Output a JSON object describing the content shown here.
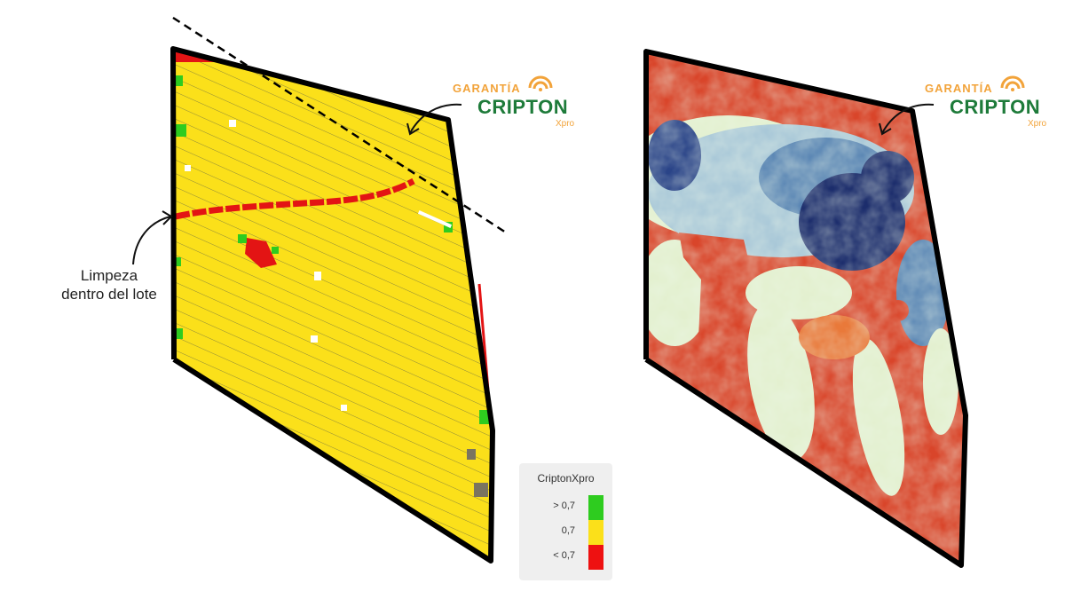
{
  "badge": {
    "garantia": "GARANTÍA",
    "brand": "CRIPTON",
    "sub": "Xpro",
    "registered": "®",
    "color_brand": "#1e7b3a",
    "color_accent": "#f2a33a"
  },
  "annotation": {
    "line1": "Limpeza",
    "line2": "dentro del lote"
  },
  "legend": {
    "title": "CriptonXpro",
    "items": [
      {
        "label": "> 0,7",
        "color": "#2ecc1f"
      },
      {
        "label": "0,7",
        "color": "#fbe01a"
      },
      {
        "label": "< 0,7",
        "color": "#ee1111"
      }
    ]
  },
  "map_colors": {
    "yellow": "#fbe01a",
    "red": "#e31414",
    "green": "#2ecc1f",
    "heat_red": "#d9452a",
    "heat_orange": "#e9793a",
    "heat_light": "#e3f0cf",
    "heat_blue": "#5a86b4",
    "heat_navy": "#1c2d6c"
  }
}
